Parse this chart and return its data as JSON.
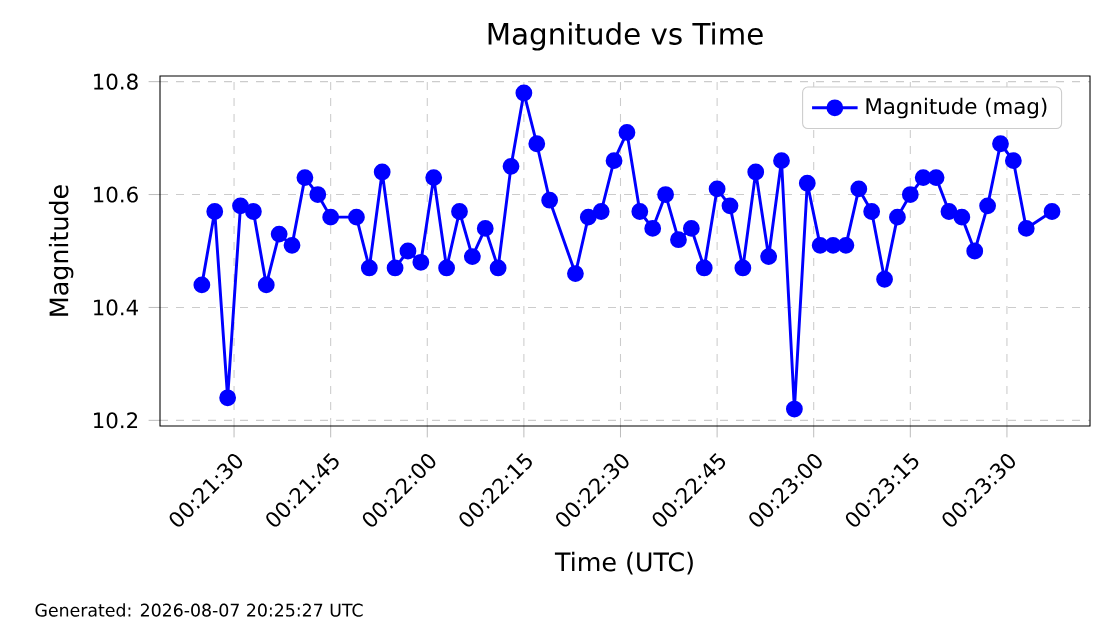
{
  "chart_data": {
    "type": "line",
    "title": "Magnitude vs Time",
    "xlabel": "Time (UTC)",
    "ylabel": "Magnitude",
    "x": [
      0.356944,
      0.3575,
      0.358056,
      0.358611,
      0.359167,
      0.359722,
      0.360278,
      0.360833,
      0.361389,
      0.361944,
      0.3625,
      0.363611,
      0.364167,
      0.364722,
      0.365278,
      0.365833,
      0.366389,
      0.366944,
      0.3675,
      0.368056,
      0.368611,
      0.369167,
      0.369722,
      0.370278,
      0.370833,
      0.371389,
      0.371944,
      0.373056,
      0.373611,
      0.374167,
      0.374722,
      0.375278,
      0.375833,
      0.376389,
      0.376944,
      0.3775,
      0.378056,
      0.378611,
      0.379167,
      0.379722,
      0.380278,
      0.380833,
      0.381389,
      0.381944,
      0.3825,
      0.383056,
      0.383611,
      0.384167,
      0.384722,
      0.385278,
      0.385833,
      0.386389,
      0.386944,
      0.3875,
      0.388056,
      0.388611,
      0.389167,
      0.389722,
      0.390278,
      0.390833,
      0.391389,
      0.391944,
      0.3925,
      0.393611
    ],
    "series": [
      {
        "name": "Magnitude (mag)",
        "color": "#0000ff",
        "values": [
          10.44,
          10.57,
          10.24,
          10.58,
          10.57,
          10.44,
          10.53,
          10.51,
          10.63,
          10.6,
          10.56,
          10.56,
          10.47,
          10.64,
          10.47,
          10.5,
          10.48,
          10.63,
          10.47,
          10.57,
          10.49,
          10.54,
          10.47,
          10.65,
          10.78,
          10.69,
          10.59,
          10.46,
          10.56,
          10.57,
          10.66,
          10.71,
          10.57,
          10.54,
          10.6,
          10.52,
          10.54,
          10.47,
          10.61,
          10.58,
          10.47,
          10.64,
          10.49,
          10.66,
          10.22,
          10.62,
          10.51,
          10.51,
          10.51,
          10.61,
          10.57,
          10.45,
          10.56,
          10.6,
          10.63,
          10.63,
          10.57,
          10.56,
          10.5,
          10.58,
          10.69,
          10.66,
          10.54,
          10.57
        ]
      }
    ],
    "xlim": [
      0.355139,
      0.39525
    ],
    "ylim": [
      10.19,
      10.81
    ],
    "xticks": [
      {
        "value": 0.358333,
        "label": "00:21:30"
      },
      {
        "value": 0.3625,
        "label": "00:21:45"
      },
      {
        "value": 0.366667,
        "label": "00:22:00"
      },
      {
        "value": 0.370833,
        "label": "00:22:15"
      },
      {
        "value": 0.375,
        "label": "00:22:30"
      },
      {
        "value": 0.379167,
        "label": "00:22:45"
      },
      {
        "value": 0.383333,
        "label": "00:23:00"
      },
      {
        "value": 0.3875,
        "label": "00:23:15"
      },
      {
        "value": 0.391667,
        "label": "00:23:30"
      }
    ],
    "yticks": [
      {
        "value": 10.2,
        "label": "10.2"
      },
      {
        "value": 10.4,
        "label": "10.4"
      },
      {
        "value": 10.6,
        "label": "10.6"
      },
      {
        "value": 10.8,
        "label": "10.8"
      }
    ],
    "grid": true,
    "legend": "top right",
    "marker": "circle",
    "line_style": "solid",
    "annotations": [
      "Generated: 2026-08-07 20:25:27 UTC"
    ]
  }
}
